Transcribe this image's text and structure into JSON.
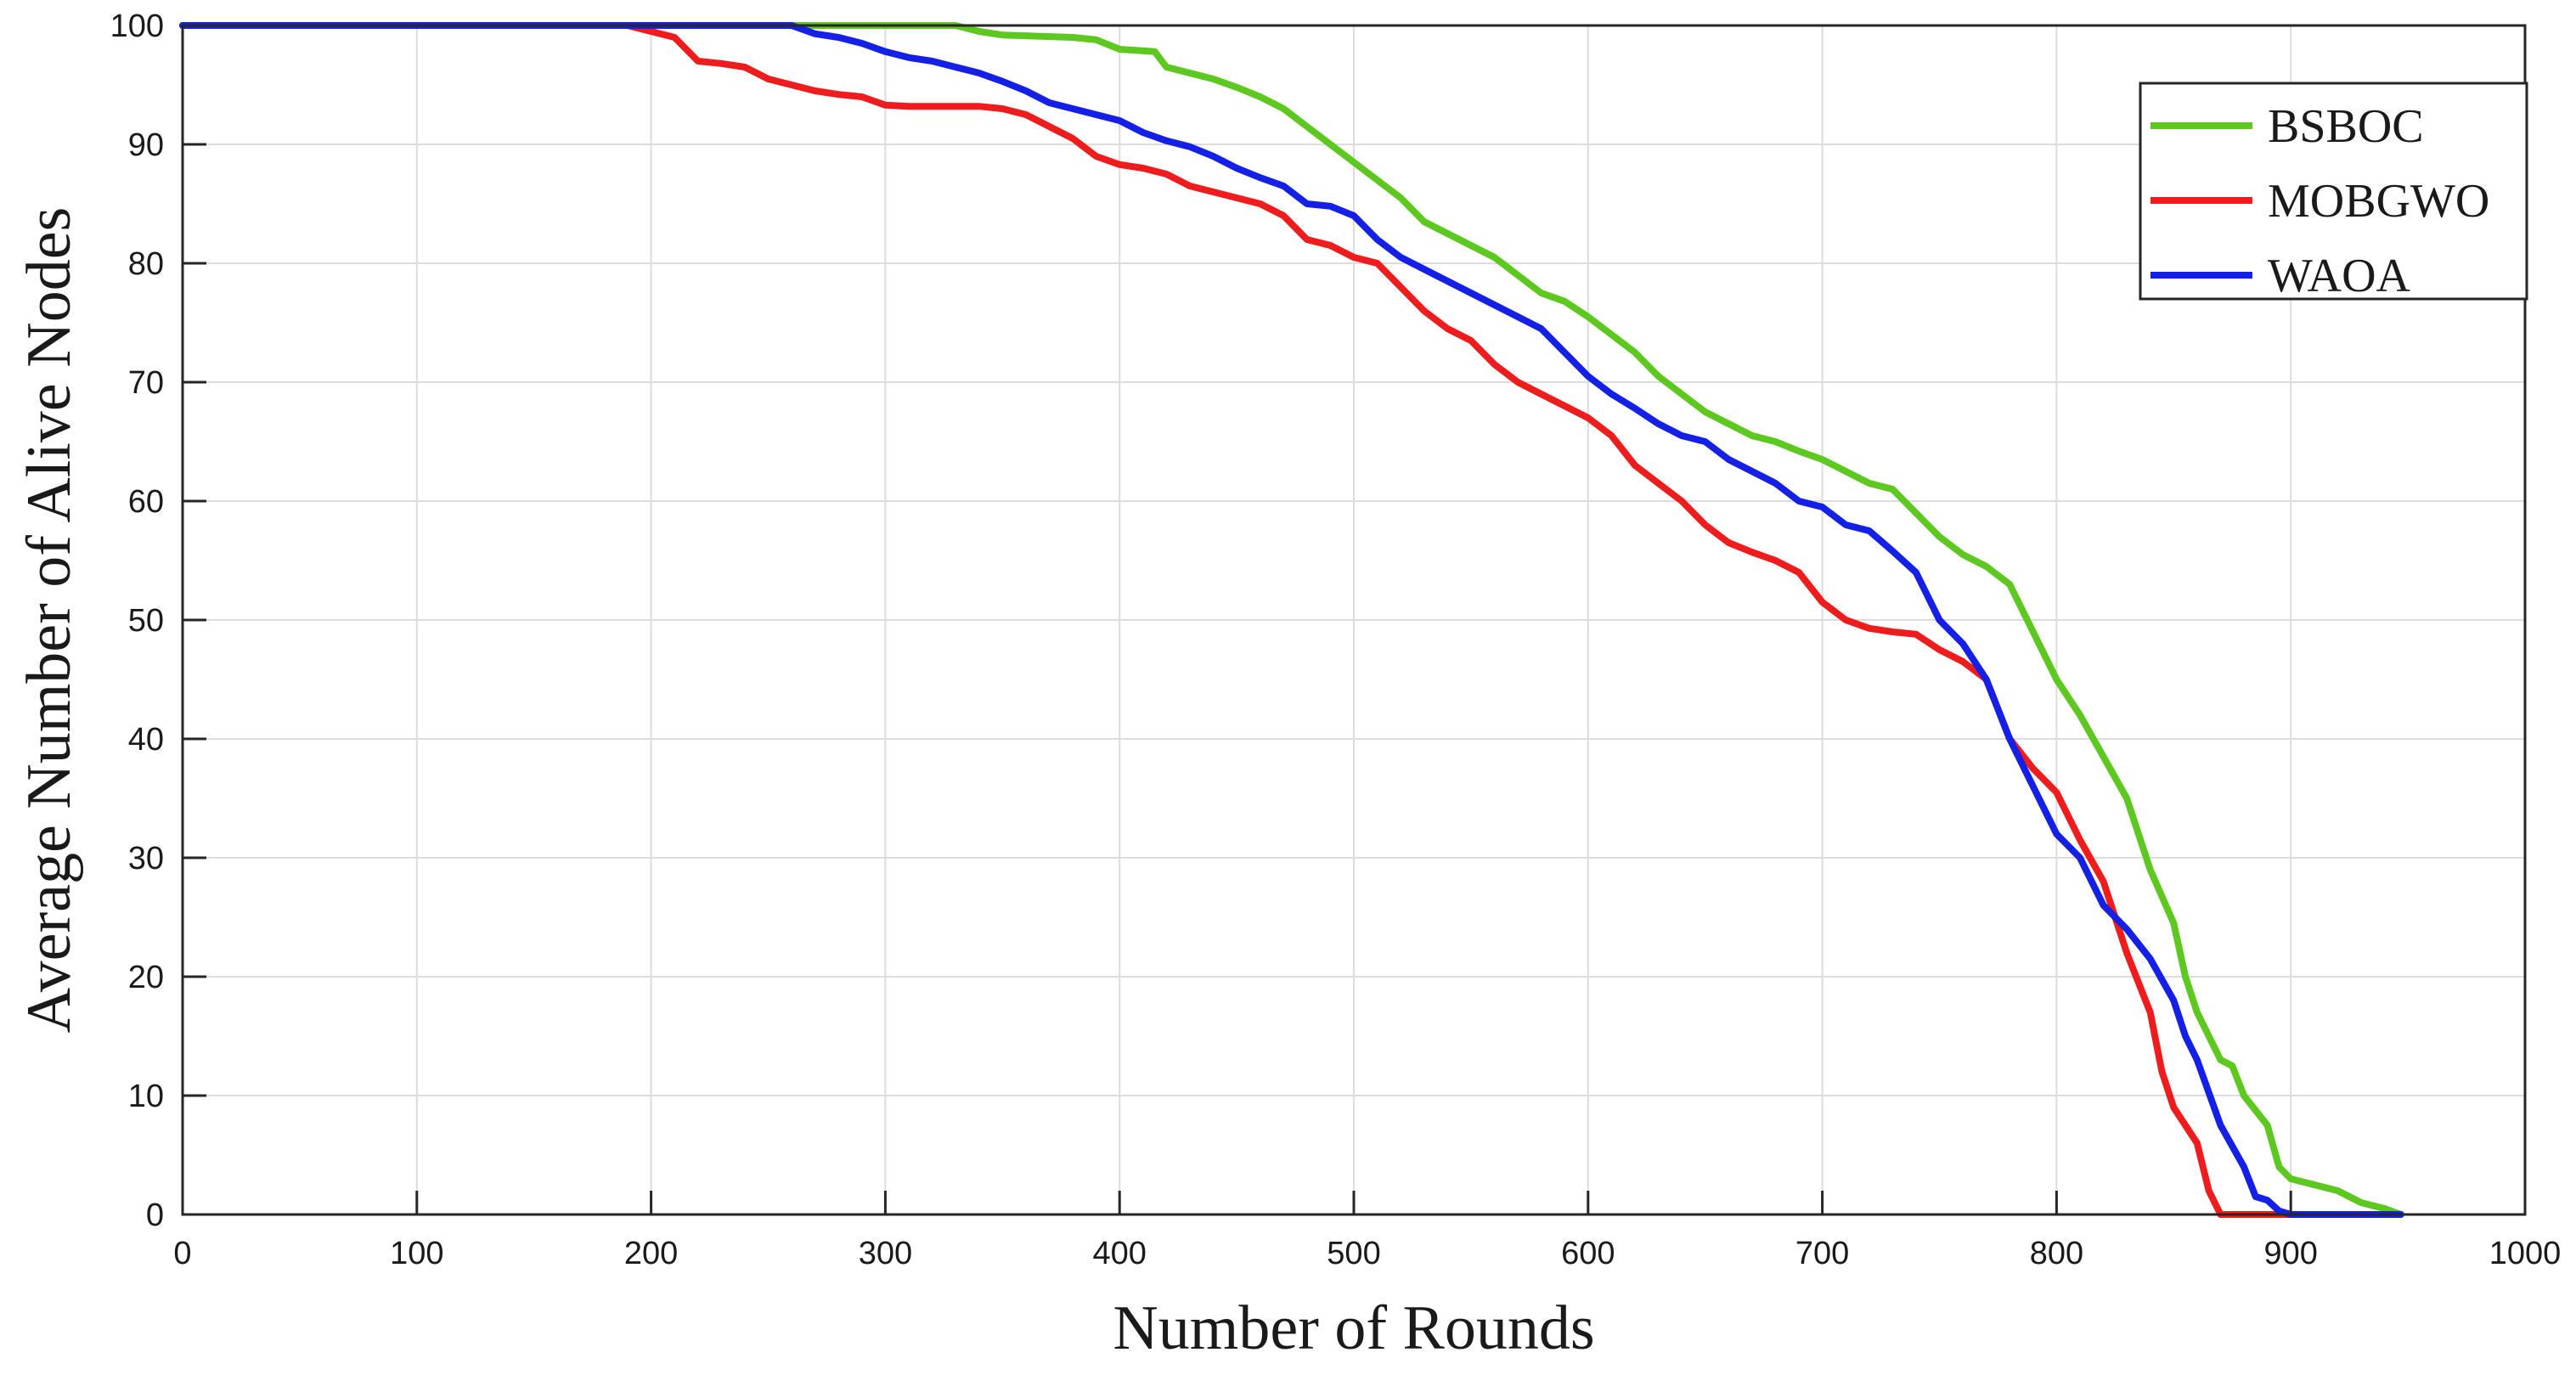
{
  "chart_data": {
    "type": "line",
    "xlabel": "Number of Rounds",
    "ylabel": "Average Number of Alive Nodes",
    "xlim": [
      0,
      1000
    ],
    "ylim": [
      0,
      100
    ],
    "xticks": [
      0,
      100,
      200,
      300,
      400,
      500,
      600,
      700,
      800,
      900,
      1000
    ],
    "yticks": [
      0,
      10,
      20,
      30,
      40,
      50,
      60,
      70,
      80,
      90,
      100
    ],
    "grid": true,
    "legend_position": "top-right",
    "series": [
      {
        "name": "BSBOC",
        "color": "#5dc81f",
        "points": [
          [
            0,
            100
          ],
          [
            265,
            100
          ],
          [
            330,
            100
          ],
          [
            340,
            99.5
          ],
          [
            350,
            99.2
          ],
          [
            380,
            99
          ],
          [
            390,
            98.8
          ],
          [
            400,
            98
          ],
          [
            415,
            97.8
          ],
          [
            420,
            96.5
          ],
          [
            430,
            96
          ],
          [
            440,
            95.5
          ],
          [
            450,
            94.8
          ],
          [
            460,
            94
          ],
          [
            470,
            93
          ],
          [
            480,
            91.5
          ],
          [
            490,
            90
          ],
          [
            500,
            88.5
          ],
          [
            510,
            87
          ],
          [
            520,
            85.5
          ],
          [
            530,
            83.5
          ],
          [
            540,
            82.5
          ],
          [
            550,
            81.5
          ],
          [
            560,
            80.5
          ],
          [
            570,
            79
          ],
          [
            580,
            77.5
          ],
          [
            590,
            76.8
          ],
          [
            600,
            75.5
          ],
          [
            610,
            74
          ],
          [
            620,
            72.5
          ],
          [
            630,
            70.5
          ],
          [
            640,
            69
          ],
          [
            650,
            67.5
          ],
          [
            660,
            66.5
          ],
          [
            670,
            65.5
          ],
          [
            680,
            65
          ],
          [
            690,
            64.2
          ],
          [
            700,
            63.5
          ],
          [
            710,
            62.5
          ],
          [
            720,
            61.5
          ],
          [
            730,
            61
          ],
          [
            740,
            59
          ],
          [
            750,
            57
          ],
          [
            760,
            55.5
          ],
          [
            770,
            54.5
          ],
          [
            780,
            53
          ],
          [
            790,
            49
          ],
          [
            800,
            45
          ],
          [
            810,
            42
          ],
          [
            820,
            38.5
          ],
          [
            830,
            35
          ],
          [
            840,
            29
          ],
          [
            850,
            24.5
          ],
          [
            855,
            20
          ],
          [
            860,
            17
          ],
          [
            870,
            13
          ],
          [
            875,
            12.5
          ],
          [
            880,
            10
          ],
          [
            890,
            7.5
          ],
          [
            895,
            4
          ],
          [
            900,
            3
          ],
          [
            910,
            2.5
          ],
          [
            920,
            2
          ],
          [
            930,
            1
          ],
          [
            940,
            0.5
          ],
          [
            947,
            0
          ]
        ]
      },
      {
        "name": "MOBGWO",
        "color": "#ee1c1c",
        "points": [
          [
            0,
            100
          ],
          [
            190,
            100
          ],
          [
            200,
            99.5
          ],
          [
            210,
            99
          ],
          [
            220,
            97
          ],
          [
            230,
            96.8
          ],
          [
            240,
            96.5
          ],
          [
            250,
            95.5
          ],
          [
            260,
            95
          ],
          [
            270,
            94.5
          ],
          [
            280,
            94.2
          ],
          [
            290,
            94
          ],
          [
            300,
            93.3
          ],
          [
            310,
            93.2
          ],
          [
            340,
            93.2
          ],
          [
            350,
            93
          ],
          [
            360,
            92.5
          ],
          [
            370,
            91.5
          ],
          [
            380,
            90.5
          ],
          [
            390,
            89
          ],
          [
            400,
            88.3
          ],
          [
            410,
            88
          ],
          [
            420,
            87.5
          ],
          [
            430,
            86.5
          ],
          [
            440,
            86
          ],
          [
            450,
            85.5
          ],
          [
            460,
            85
          ],
          [
            470,
            84
          ],
          [
            480,
            82
          ],
          [
            490,
            81.5
          ],
          [
            500,
            80.5
          ],
          [
            510,
            80
          ],
          [
            520,
            78
          ],
          [
            530,
            76
          ],
          [
            540,
            74.5
          ],
          [
            550,
            73.5
          ],
          [
            560,
            71.5
          ],
          [
            570,
            70
          ],
          [
            580,
            69
          ],
          [
            590,
            68
          ],
          [
            600,
            67
          ],
          [
            610,
            65.5
          ],
          [
            620,
            63
          ],
          [
            630,
            61.5
          ],
          [
            640,
            60
          ],
          [
            650,
            58
          ],
          [
            660,
            56.5
          ],
          [
            670,
            55.7
          ],
          [
            680,
            55
          ],
          [
            690,
            54
          ],
          [
            700,
            51.5
          ],
          [
            710,
            50
          ],
          [
            720,
            49.3
          ],
          [
            730,
            49
          ],
          [
            740,
            48.8
          ],
          [
            750,
            47.5
          ],
          [
            760,
            46.5
          ],
          [
            770,
            45
          ],
          [
            780,
            40
          ],
          [
            790,
            37.5
          ],
          [
            800,
            35.5
          ],
          [
            810,
            31.5
          ],
          [
            820,
            28
          ],
          [
            830,
            22
          ],
          [
            840,
            17
          ],
          [
            845,
            12
          ],
          [
            850,
            9
          ],
          [
            860,
            6
          ],
          [
            865,
            2
          ],
          [
            870,
            0
          ],
          [
            900,
            0
          ]
        ]
      },
      {
        "name": "WAOA",
        "color": "#1420e6",
        "points": [
          [
            0,
            100
          ],
          [
            260,
            100
          ],
          [
            270,
            99.3
          ],
          [
            280,
            99
          ],
          [
            290,
            98.5
          ],
          [
            300,
            97.8
          ],
          [
            310,
            97.3
          ],
          [
            320,
            97
          ],
          [
            330,
            96.5
          ],
          [
            340,
            96
          ],
          [
            350,
            95.3
          ],
          [
            360,
            94.5
          ],
          [
            370,
            93.5
          ],
          [
            380,
            93
          ],
          [
            390,
            92.5
          ],
          [
            400,
            92
          ],
          [
            410,
            91
          ],
          [
            420,
            90.3
          ],
          [
            430,
            89.8
          ],
          [
            440,
            89
          ],
          [
            450,
            88
          ],
          [
            460,
            87.2
          ],
          [
            470,
            86.5
          ],
          [
            480,
            85
          ],
          [
            490,
            84.8
          ],
          [
            500,
            84
          ],
          [
            510,
            82
          ],
          [
            520,
            80.5
          ],
          [
            530,
            79.5
          ],
          [
            540,
            78.5
          ],
          [
            550,
            77.5
          ],
          [
            560,
            76.5
          ],
          [
            570,
            75.5
          ],
          [
            580,
            74.5
          ],
          [
            590,
            72.5
          ],
          [
            600,
            70.5
          ],
          [
            610,
            69
          ],
          [
            620,
            67.8
          ],
          [
            630,
            66.5
          ],
          [
            640,
            65.5
          ],
          [
            650,
            65
          ],
          [
            660,
            63.5
          ],
          [
            670,
            62.5
          ],
          [
            680,
            61.5
          ],
          [
            690,
            60
          ],
          [
            700,
            59.5
          ],
          [
            710,
            58
          ],
          [
            720,
            57.5
          ],
          [
            730,
            55.8
          ],
          [
            740,
            54
          ],
          [
            750,
            50
          ],
          [
            760,
            48
          ],
          [
            770,
            45
          ],
          [
            780,
            40
          ],
          [
            790,
            36
          ],
          [
            800,
            32
          ],
          [
            810,
            30
          ],
          [
            820,
            26
          ],
          [
            830,
            24
          ],
          [
            840,
            21.5
          ],
          [
            850,
            18
          ],
          [
            855,
            15
          ],
          [
            860,
            13
          ],
          [
            870,
            7.5
          ],
          [
            880,
            4
          ],
          [
            885,
            1.5
          ],
          [
            890,
            1.2
          ],
          [
            895,
            0.3
          ],
          [
            900,
            0
          ],
          [
            947,
            0
          ]
        ]
      }
    ]
  }
}
